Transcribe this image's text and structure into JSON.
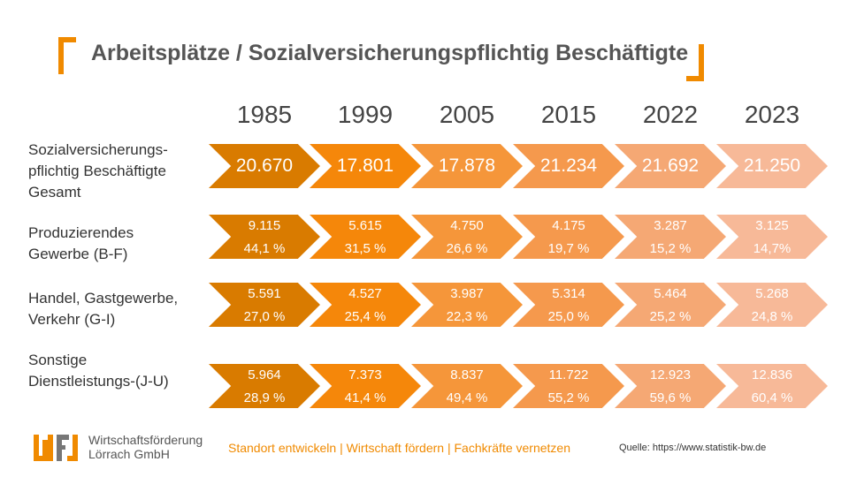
{
  "title": "Arbeitsplätze / Sozialversicherungspflichtig Beschäftigte",
  "chart_data": {
    "type": "table",
    "title": "Arbeitsplätze / Sozialversicherungspflichtig Beschäftigte",
    "columns": [
      "1985",
      "1999",
      "2005",
      "2015",
      "2022",
      "2023"
    ],
    "column_colors": [
      "#D97B00",
      "#F5870A",
      "#F5963A",
      "#F5994D",
      "#F5A874",
      "#F7B998"
    ],
    "rows": [
      {
        "label": "Sozialversicherungs-\npflichtig Beschäftigte\nGesamt",
        "values": [
          "20.670",
          "17.801",
          "17.878",
          "21.234",
          "21.692",
          "21.250"
        ]
      },
      {
        "label": "Produzierendes\nGewerbe (B-F)",
        "values": [
          "9.115",
          "5.615",
          "4.750",
          "4.175",
          "3.287",
          "3.125"
        ],
        "shares": [
          "44,1 %",
          "31,5 %",
          "26,6 %",
          "19,7 %",
          "15,2 %",
          "14,7%"
        ]
      },
      {
        "label": "Handel, Gastgewerbe,\nVerkehr (G-I)",
        "values": [
          "5.591",
          "4.527",
          "3.987",
          "5.314",
          "5.464",
          "5.268"
        ],
        "shares": [
          "27,0 %",
          "25,4 %",
          "22,3 %",
          "25,0 %",
          "25,2 %",
          "24,8 %"
        ]
      },
      {
        "label": "Sonstige\nDienstleistungs-(J-U)",
        "values": [
          "5.964",
          "7.373",
          "8.837",
          "11.722",
          "12.923",
          "12.836"
        ],
        "shares": [
          "28,9 %",
          "41,4 %",
          "49,4 %",
          "55,2 %",
          "59,6 %",
          "60,4 %"
        ]
      }
    ]
  },
  "footer": {
    "logo_text": "Wirtschaftsförderung\nLörrach GmbH",
    "logo_letters": "WF",
    "tagline": "Standort  entwickeln  |  Wirtschaft fördern  |  Fachkräfte vernetzen",
    "source": "Quelle: https://www.statistik-bw.de"
  }
}
